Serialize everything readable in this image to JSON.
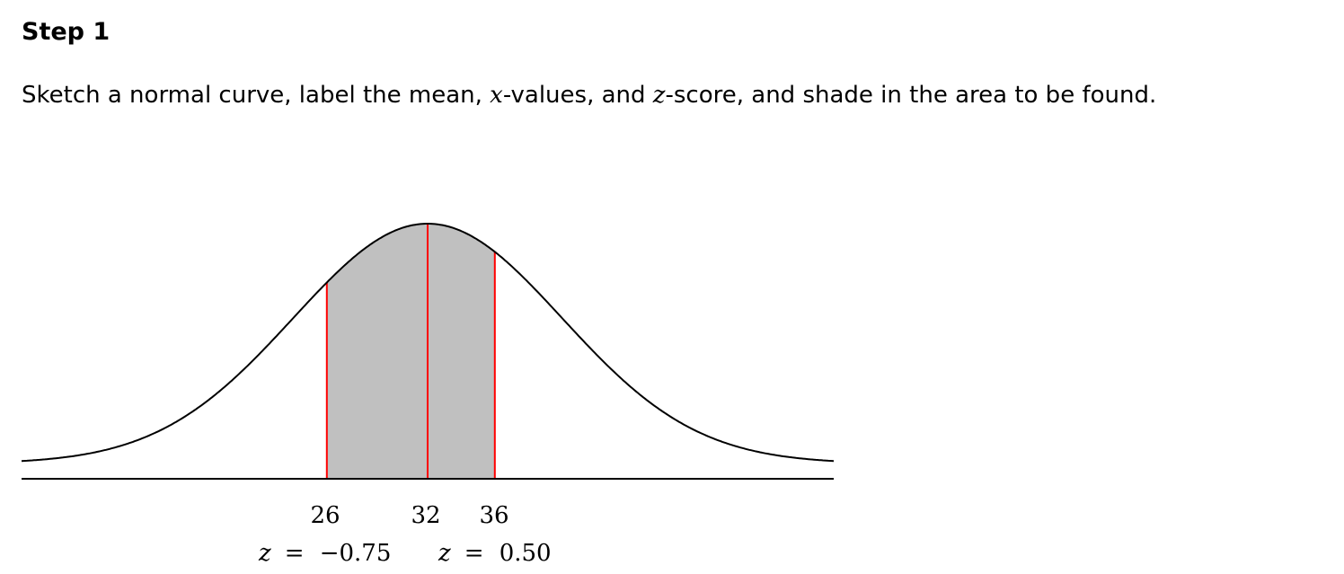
{
  "step": {
    "title": "Step 1"
  },
  "instruction": {
    "part1": "Sketch a normal curve, label the mean, ",
    "var_x": "x",
    "part2": "-values, and ",
    "var_z": "z",
    "part3": "-score, and shade in the area to be found."
  },
  "diagram": {
    "mean": 32,
    "std_dev": 8,
    "shaded_from": 26,
    "shaded_to": 36,
    "x_labels": [
      "26",
      "32",
      "36"
    ],
    "z_labels": [
      {
        "var": "z",
        "eq": "=",
        "value": "−0.75"
      },
      {
        "var": "z",
        "eq": "=",
        "value": "0.50"
      }
    ],
    "colors": {
      "curve": "#000000",
      "shade": "#c0c0c0",
      "markers": "#ff0000",
      "axis": "#000000"
    }
  }
}
